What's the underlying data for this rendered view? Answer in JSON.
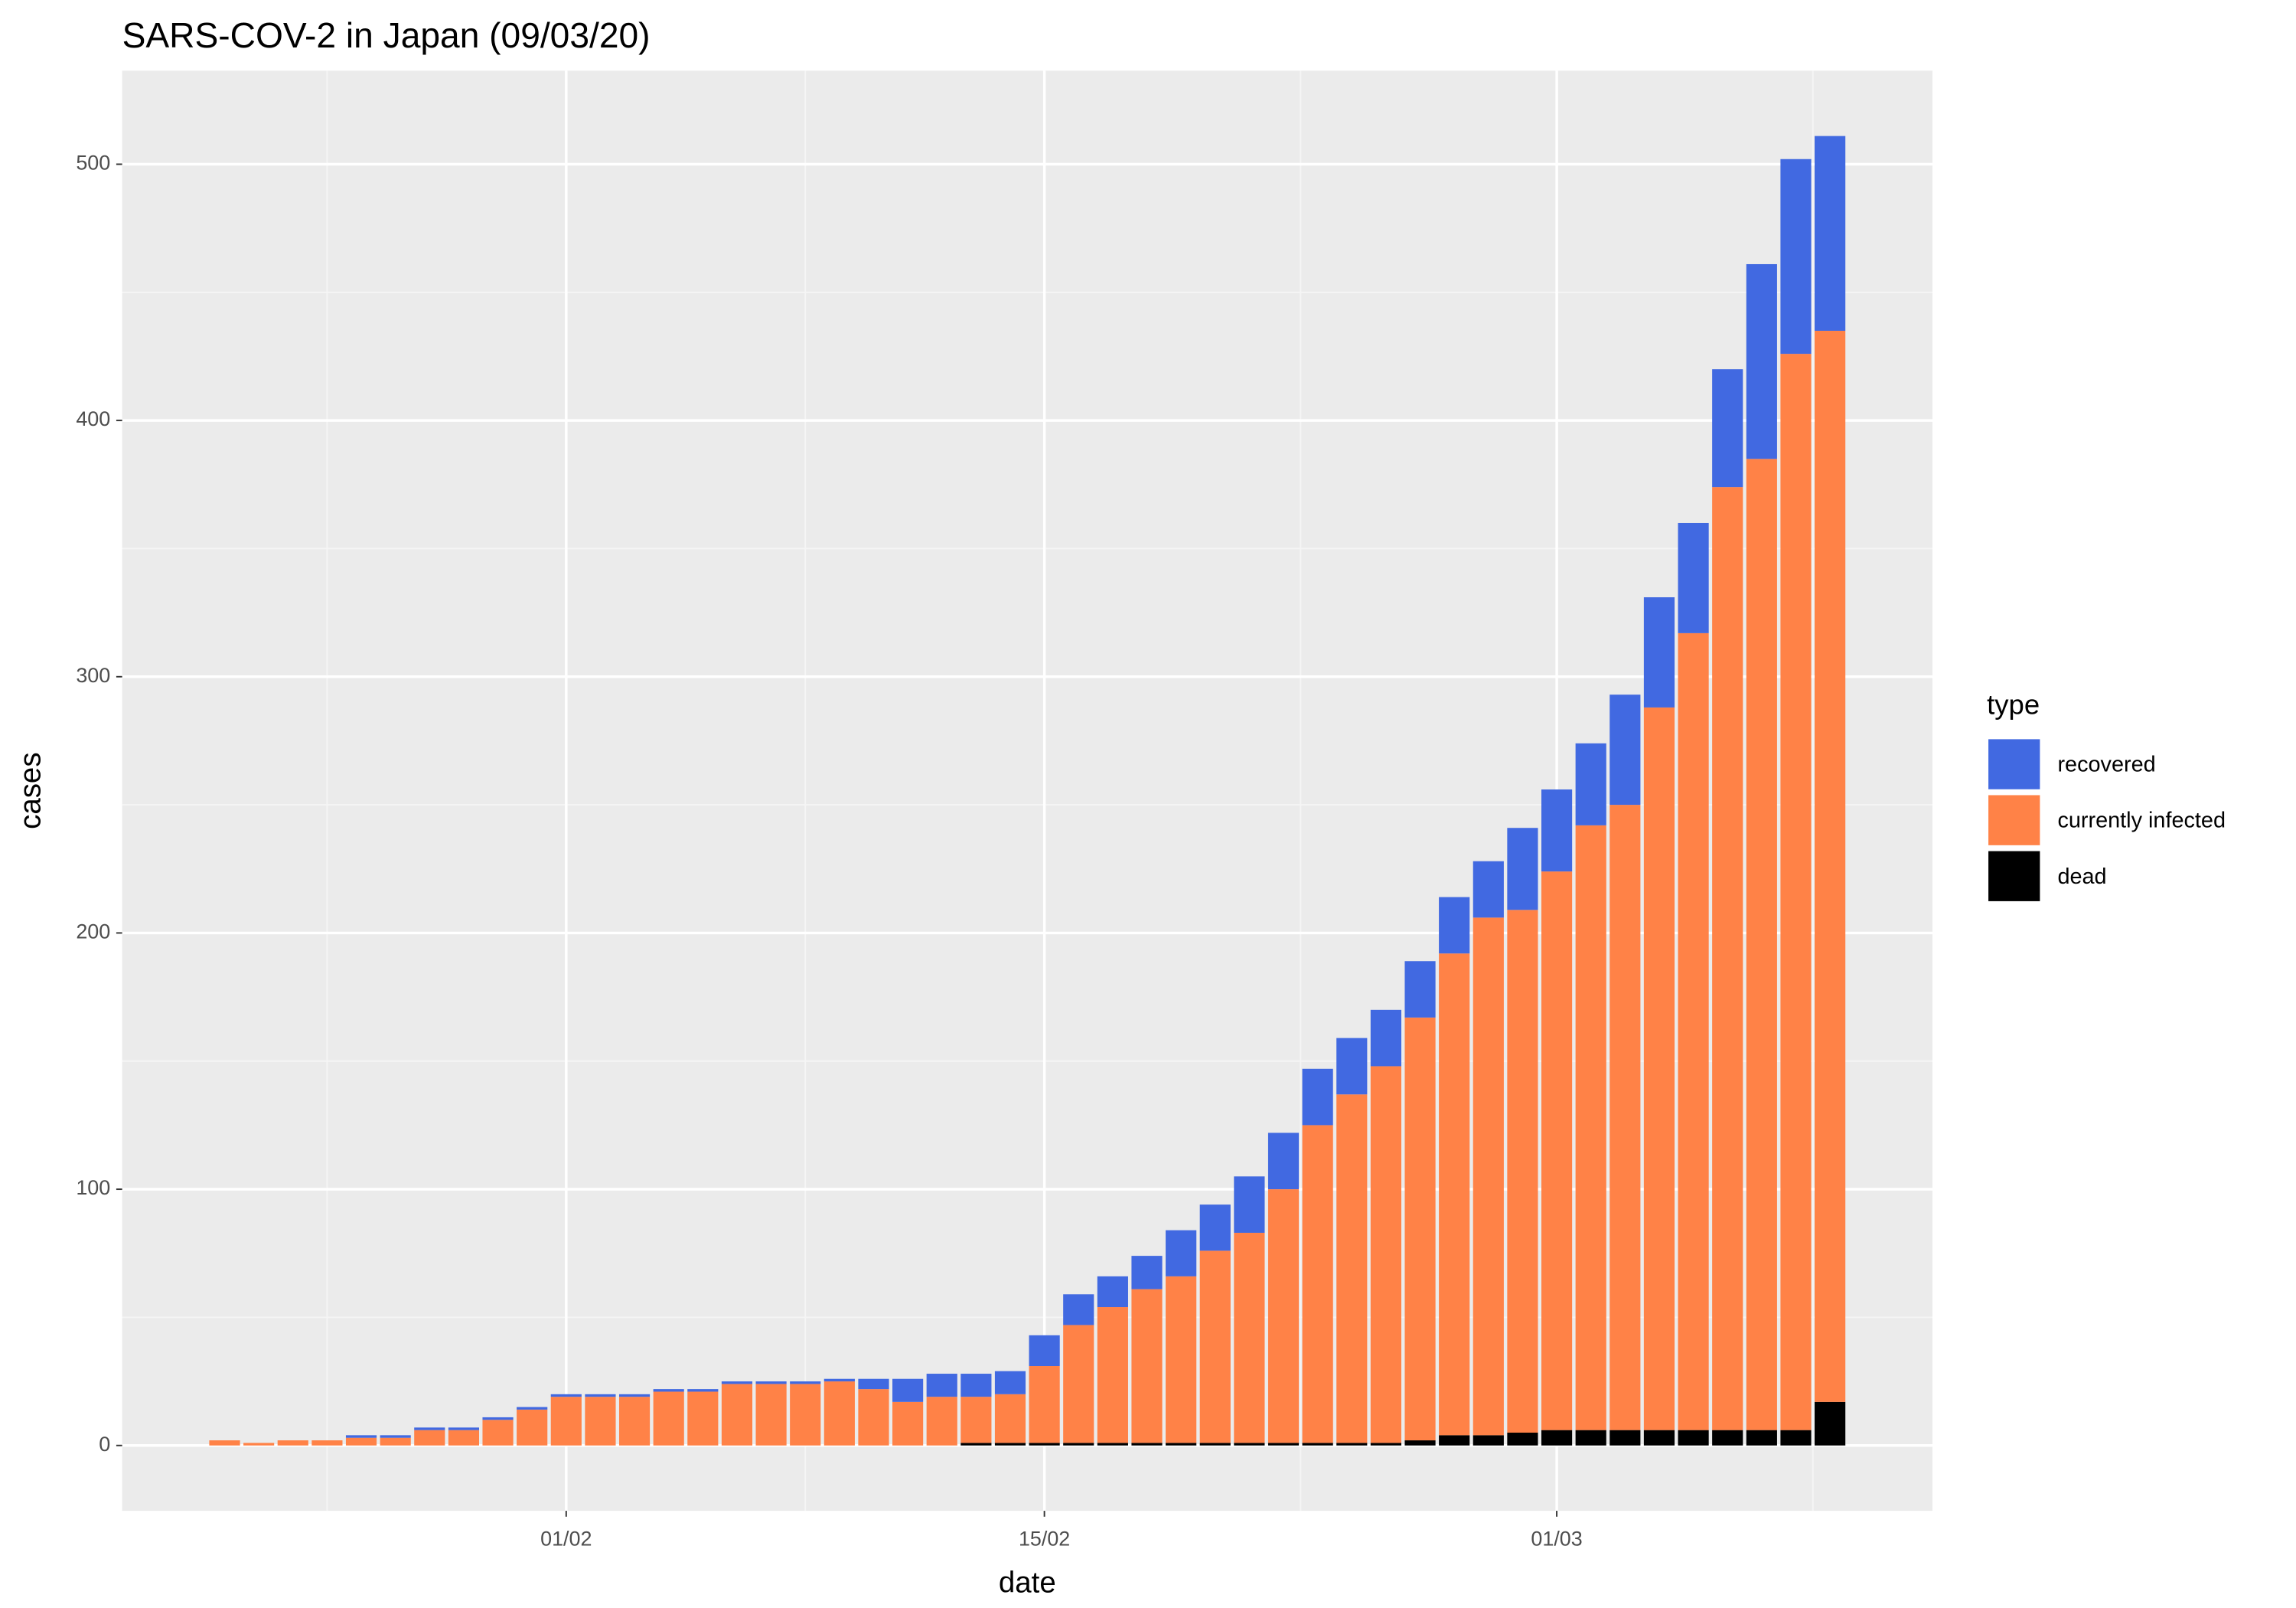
{
  "chart_data": {
    "type": "stacked_bar",
    "title": "SARS-COV-2 in Japan (09/03/20)",
    "x_label": "date",
    "y_label": "cases",
    "legend_title": "type",
    "legend_position": "right",
    "grid": true,
    "x": [
      "22/01",
      "23/01",
      "24/01",
      "25/01",
      "26/01",
      "27/01",
      "28/01",
      "29/01",
      "30/01",
      "31/01",
      "01/02",
      "02/02",
      "03/02",
      "04/02",
      "05/02",
      "06/02",
      "07/02",
      "08/02",
      "09/02",
      "10/02",
      "11/02",
      "12/02",
      "13/02",
      "14/02",
      "15/02",
      "16/02",
      "17/02",
      "18/02",
      "19/02",
      "20/02",
      "21/02",
      "22/02",
      "23/02",
      "24/02",
      "25/02",
      "26/02",
      "27/02",
      "28/02",
      "29/02",
      "01/03",
      "02/03",
      "03/03",
      "04/03",
      "05/03",
      "06/03",
      "07/03",
      "08/03",
      "09/03"
    ],
    "series": [
      {
        "name": "recovered",
        "color": "#4169e1",
        "values": [
          0,
          0,
          0,
          0,
          1,
          1,
          1,
          1,
          1,
          1,
          1,
          1,
          1,
          1,
          1,
          1,
          1,
          1,
          1,
          4,
          9,
          9,
          9,
          9,
          12,
          12,
          12,
          13,
          18,
          18,
          22,
          22,
          22,
          22,
          22,
          22,
          22,
          22,
          32,
          32,
          32,
          43,
          43,
          43,
          46,
          76,
          76,
          76
        ]
      },
      {
        "name": "currently infected",
        "color": "#ff8247",
        "values": [
          2,
          1,
          2,
          2,
          3,
          3,
          6,
          6,
          10,
          14,
          19,
          19,
          19,
          21,
          21,
          24,
          24,
          24,
          25,
          22,
          17,
          19,
          18,
          19,
          30,
          46,
          53,
          60,
          65,
          75,
          82,
          99,
          124,
          136,
          147,
          165,
          188,
          202,
          204,
          218,
          236,
          244,
          282,
          311,
          368,
          379,
          420,
          418
        ]
      },
      {
        "name": "dead",
        "color": "#000000",
        "values": [
          0,
          0,
          0,
          0,
          0,
          0,
          0,
          0,
          0,
          0,
          0,
          0,
          0,
          0,
          0,
          0,
          0,
          0,
          0,
          0,
          0,
          0,
          1,
          1,
          1,
          1,
          1,
          1,
          1,
          1,
          1,
          1,
          1,
          1,
          1,
          2,
          4,
          4,
          5,
          6,
          6,
          6,
          6,
          6,
          6,
          6,
          6,
          17
        ]
      }
    ],
    "xlim": [
      "19/01",
      "12/03"
    ],
    "xticks": [
      "01/02",
      "15/02",
      "01/03"
    ],
    "ylim": [
      -25.5,
      536.5
    ],
    "yticks": [
      0,
      100,
      200,
      300,
      400,
      500
    ]
  }
}
